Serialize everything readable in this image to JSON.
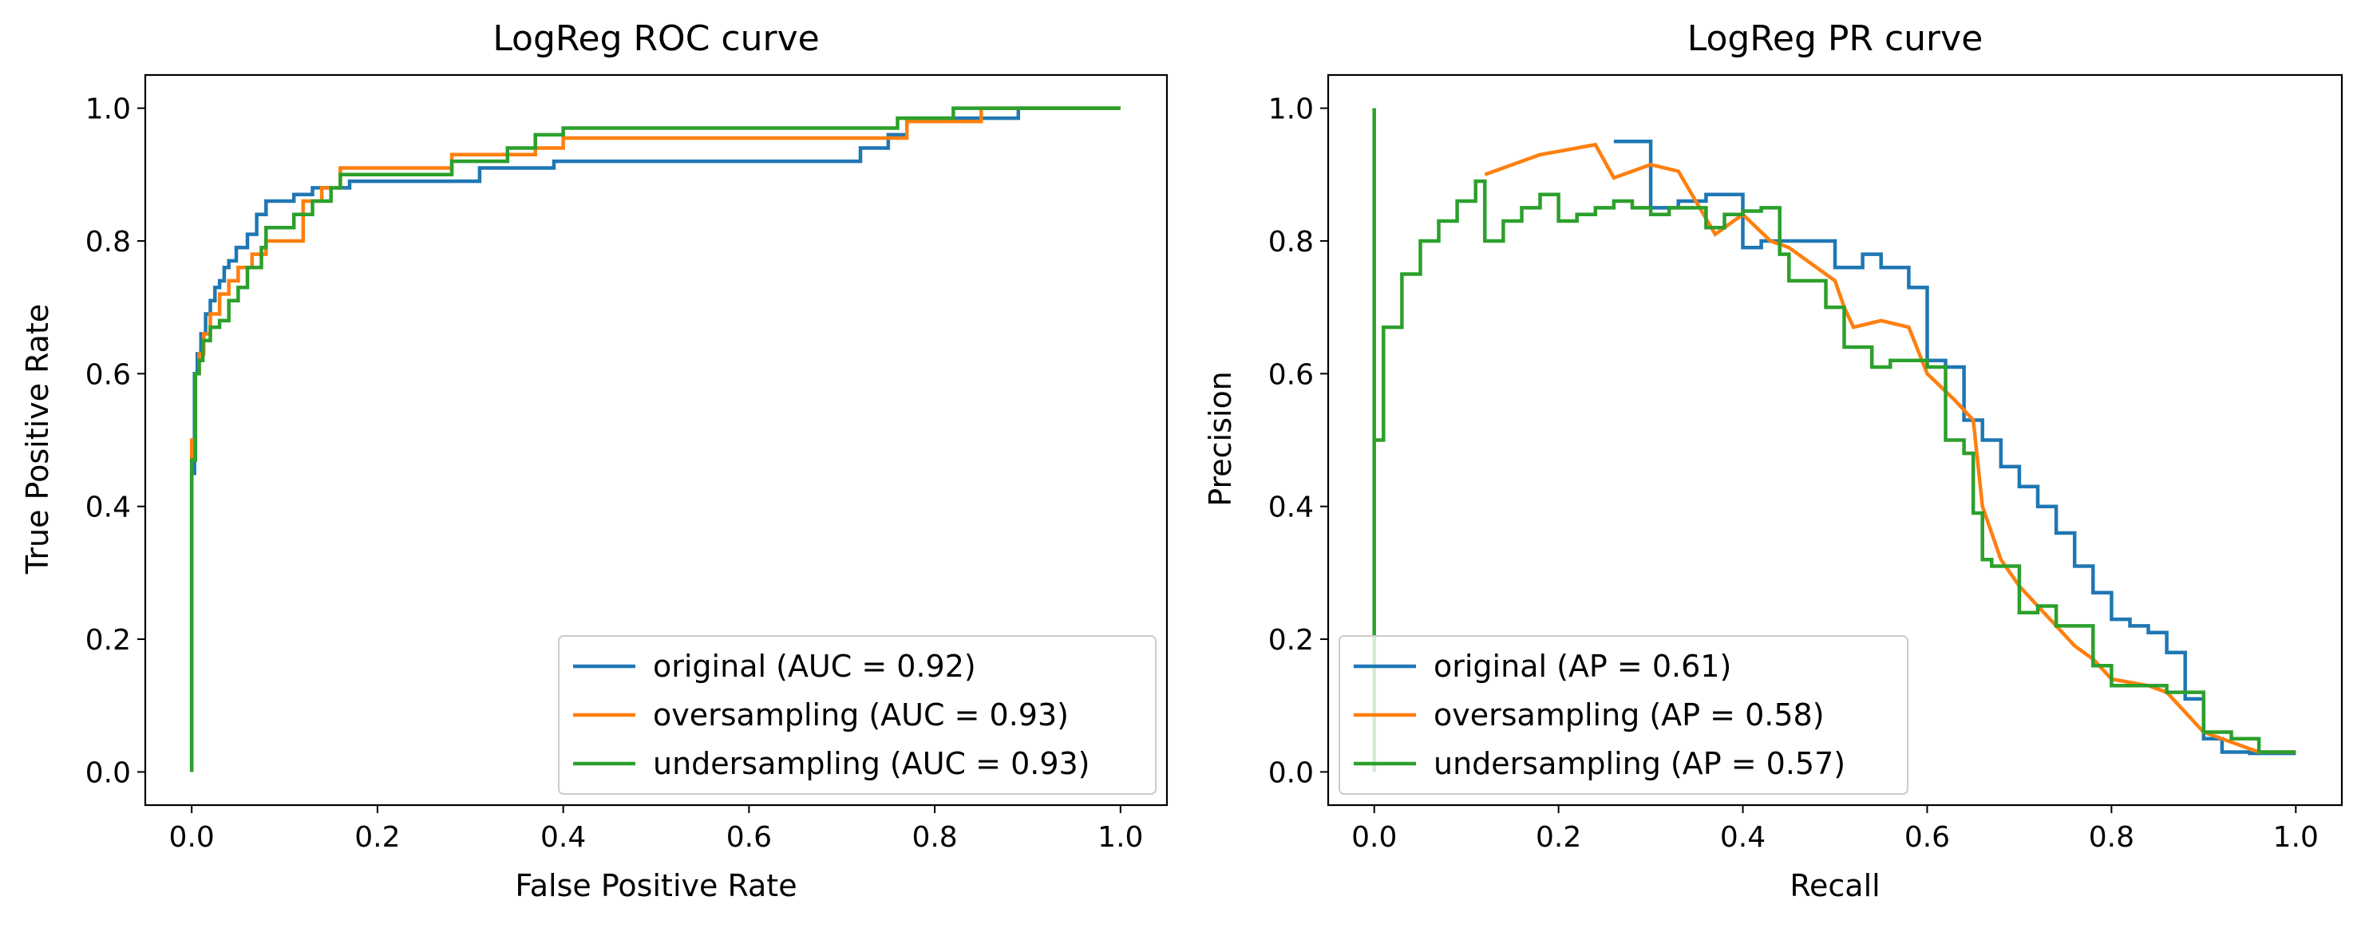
{
  "chart_data": [
    {
      "type": "line",
      "title": "LogReg ROC curve",
      "xlabel": "False Positive Rate",
      "ylabel": "True Positive Rate",
      "xlim": [
        -0.05,
        1.05
      ],
      "ylim": [
        -0.05,
        1.05
      ],
      "xticks": [
        "0.0",
        "0.2",
        "0.4",
        "0.6",
        "0.8",
        "1.0"
      ],
      "yticks": [
        "0.0",
        "0.2",
        "0.4",
        "0.6",
        "0.8",
        "1.0"
      ],
      "legend_position": "lower-right",
      "series": [
        {
          "name": "original (AUC = 0.92)",
          "color": "#1f77b4",
          "x": [
            0.0,
            0.0,
            0.003,
            0.003,
            0.006,
            0.006,
            0.01,
            0.01,
            0.015,
            0.015,
            0.02,
            0.02,
            0.025,
            0.025,
            0.03,
            0.03,
            0.035,
            0.035,
            0.04,
            0.04,
            0.048,
            0.048,
            0.06,
            0.06,
            0.07,
            0.07,
            0.08,
            0.08,
            0.11,
            0.11,
            0.13,
            0.13,
            0.17,
            0.17,
            0.31,
            0.31,
            0.39,
            0.39,
            0.72,
            0.72,
            0.75,
            0.75,
            0.77,
            0.77,
            0.89,
            0.89,
            1.0
          ],
          "y": [
            0.0,
            0.45,
            0.45,
            0.6,
            0.6,
            0.63,
            0.63,
            0.66,
            0.66,
            0.69,
            0.69,
            0.71,
            0.71,
            0.73,
            0.73,
            0.74,
            0.74,
            0.76,
            0.76,
            0.77,
            0.77,
            0.79,
            0.79,
            0.81,
            0.81,
            0.84,
            0.84,
            0.86,
            0.86,
            0.87,
            0.87,
            0.88,
            0.88,
            0.89,
            0.89,
            0.91,
            0.91,
            0.92,
            0.92,
            0.94,
            0.94,
            0.96,
            0.96,
            0.985,
            0.985,
            1.0,
            1.0
          ]
        },
        {
          "name": "oversampling (AUC = 0.93)",
          "color": "#ff7f0e",
          "x": [
            0.0,
            0.0,
            0.004,
            0.004,
            0.008,
            0.008,
            0.013,
            0.013,
            0.02,
            0.02,
            0.03,
            0.03,
            0.04,
            0.04,
            0.05,
            0.05,
            0.065,
            0.065,
            0.08,
            0.08,
            0.12,
            0.12,
            0.14,
            0.14,
            0.16,
            0.16,
            0.28,
            0.28,
            0.37,
            0.37,
            0.4,
            0.4,
            0.77,
            0.77,
            0.85,
            0.85,
            1.0
          ],
          "y": [
            0.0,
            0.5,
            0.5,
            0.6,
            0.6,
            0.63,
            0.63,
            0.66,
            0.66,
            0.69,
            0.69,
            0.72,
            0.72,
            0.74,
            0.74,
            0.76,
            0.76,
            0.78,
            0.78,
            0.8,
            0.8,
            0.86,
            0.86,
            0.88,
            0.88,
            0.91,
            0.91,
            0.93,
            0.93,
            0.94,
            0.94,
            0.955,
            0.955,
            0.98,
            0.98,
            1.0,
            1.0
          ]
        },
        {
          "name": "undersampling (AUC = 0.93)",
          "color": "#2ca02c",
          "x": [
            0.0,
            0.0,
            0.004,
            0.004,
            0.008,
            0.008,
            0.012,
            0.012,
            0.02,
            0.02,
            0.03,
            0.03,
            0.04,
            0.04,
            0.05,
            0.05,
            0.06,
            0.06,
            0.075,
            0.075,
            0.08,
            0.08,
            0.11,
            0.11,
            0.13,
            0.13,
            0.15,
            0.15,
            0.16,
            0.16,
            0.28,
            0.28,
            0.34,
            0.34,
            0.37,
            0.37,
            0.4,
            0.4,
            0.76,
            0.76,
            0.82,
            0.82,
            1.0
          ],
          "y": [
            0.0,
            0.47,
            0.47,
            0.6,
            0.6,
            0.62,
            0.62,
            0.65,
            0.65,
            0.67,
            0.67,
            0.68,
            0.68,
            0.71,
            0.71,
            0.73,
            0.73,
            0.76,
            0.76,
            0.79,
            0.79,
            0.82,
            0.82,
            0.84,
            0.84,
            0.86,
            0.86,
            0.88,
            0.88,
            0.9,
            0.9,
            0.92,
            0.92,
            0.94,
            0.94,
            0.96,
            0.96,
            0.97,
            0.97,
            0.985,
            0.985,
            1.0,
            1.0
          ]
        }
      ]
    },
    {
      "type": "line",
      "title": "LogReg PR curve",
      "xlabel": "Recall",
      "ylabel": "Precision",
      "xlim": [
        -0.05,
        1.05
      ],
      "ylim": [
        -0.05,
        1.05
      ],
      "xticks": [
        "0.0",
        "0.2",
        "0.4",
        "0.6",
        "0.8",
        "1.0"
      ],
      "yticks": [
        "0.0",
        "0.2",
        "0.4",
        "0.6",
        "0.8",
        "1.0"
      ],
      "legend_position": "lower-left",
      "series": [
        {
          "name": "original (AP = 0.61)",
          "color": "#1f77b4",
          "x": [
            0.26,
            0.26,
            0.3,
            0.3,
            0.33,
            0.33,
            0.36,
            0.36,
            0.4,
            0.4,
            0.42,
            0.42,
            0.45,
            0.45,
            0.5,
            0.5,
            0.53,
            0.53,
            0.55,
            0.55,
            0.58,
            0.58,
            0.6,
            0.6,
            0.62,
            0.62,
            0.64,
            0.64,
            0.66,
            0.66,
            0.68,
            0.68,
            0.7,
            0.7,
            0.72,
            0.72,
            0.74,
            0.74,
            0.76,
            0.76,
            0.78,
            0.78,
            0.8,
            0.8,
            0.82,
            0.82,
            0.84,
            0.84,
            0.86,
            0.86,
            0.88,
            0.88,
            0.9,
            0.9,
            0.92,
            0.92,
            0.95,
            0.95,
            1.0
          ],
          "y": [
            0.95,
            0.95,
            0.95,
            0.85,
            0.85,
            0.86,
            0.86,
            0.87,
            0.87,
            0.79,
            0.79,
            0.8,
            0.8,
            0.8,
            0.8,
            0.76,
            0.76,
            0.78,
            0.78,
            0.76,
            0.76,
            0.73,
            0.73,
            0.62,
            0.62,
            0.61,
            0.61,
            0.53,
            0.53,
            0.5,
            0.5,
            0.46,
            0.46,
            0.43,
            0.43,
            0.4,
            0.4,
            0.36,
            0.36,
            0.31,
            0.31,
            0.27,
            0.27,
            0.23,
            0.23,
            0.22,
            0.22,
            0.21,
            0.21,
            0.18,
            0.18,
            0.11,
            0.11,
            0.05,
            0.05,
            0.03,
            0.03,
            0.028,
            0.028
          ]
        },
        {
          "name": "oversampling (AP = 0.58)",
          "color": "#ff7f0e",
          "x": [
            0.12,
            0.12,
            0.14,
            0.14,
            0.16,
            0.16,
            0.18,
            0.18,
            0.2,
            0.2,
            0.22,
            0.22,
            0.24,
            0.24,
            0.26,
            0.26,
            0.3,
            0.3,
            0.33,
            0.33,
            0.37,
            0.37,
            0.4,
            0.4,
            0.43,
            0.43,
            0.45,
            0.45,
            0.5,
            0.5,
            0.51,
            0.51,
            0.52,
            0.52,
            0.55,
            0.55,
            0.58,
            0.58,
            0.6,
            0.6,
            0.63,
            0.63,
            0.65,
            0.65,
            0.66,
            0.66,
            0.68,
            0.68,
            0.7,
            0.7,
            0.72,
            0.72,
            0.74,
            0.74,
            0.76,
            0.76,
            0.78,
            0.78,
            0.8,
            0.8,
            0.84,
            0.84,
            0.86,
            0.86,
            0.9,
            0.9,
            0.96,
            0.96,
            1.0
          ],
          "y": [
            0.9,
            0.9,
            0.91,
            0.91,
            0.92,
            0.92,
            0.93,
            0.93,
            0.935,
            0.935,
            0.94,
            0.94,
            0.945,
            0.945,
            0.895,
            0.895,
            0.915,
            0.915,
            0.905,
            0.905,
            0.81,
            0.81,
            0.84,
            0.84,
            0.8,
            0.8,
            0.79,
            0.79,
            0.74,
            0.74,
            0.7,
            0.7,
            0.67,
            0.67,
            0.68,
            0.68,
            0.67,
            0.67,
            0.6,
            0.6,
            0.56,
            0.56,
            0.53,
            0.53,
            0.4,
            0.4,
            0.32,
            0.32,
            0.28,
            0.28,
            0.25,
            0.25,
            0.22,
            0.22,
            0.19,
            0.19,
            0.17,
            0.17,
            0.14,
            0.14,
            0.13,
            0.13,
            0.12,
            0.12,
            0.06,
            0.06,
            0.03,
            0.03,
            0.03
          ]
        },
        {
          "name": "undersampling (AP = 0.57)",
          "color": "#2ca02c",
          "x": [
            0.0,
            0.0,
            0.0,
            0.0,
            0.01,
            0.01,
            0.03,
            0.03,
            0.05,
            0.05,
            0.07,
            0.07,
            0.09,
            0.09,
            0.11,
            0.11,
            0.12,
            0.12,
            0.14,
            0.14,
            0.16,
            0.16,
            0.18,
            0.18,
            0.2,
            0.2,
            0.22,
            0.22,
            0.24,
            0.24,
            0.26,
            0.26,
            0.28,
            0.28,
            0.3,
            0.3,
            0.32,
            0.32,
            0.36,
            0.36,
            0.38,
            0.38,
            0.4,
            0.4,
            0.42,
            0.42,
            0.44,
            0.44,
            0.45,
            0.45,
            0.49,
            0.49,
            0.51,
            0.51,
            0.54,
            0.54,
            0.56,
            0.56,
            0.6,
            0.6,
            0.62,
            0.62,
            0.64,
            0.64,
            0.65,
            0.65,
            0.66,
            0.66,
            0.67,
            0.67,
            0.7,
            0.7,
            0.72,
            0.72,
            0.74,
            0.74,
            0.78,
            0.78,
            0.8,
            0.8,
            0.86,
            0.86,
            0.9,
            0.9,
            0.93,
            0.93,
            0.96,
            0.96,
            1.0
          ],
          "y": [
            0.0,
            1.0,
            1.0,
            0.5,
            0.5,
            0.67,
            0.67,
            0.75,
            0.75,
            0.8,
            0.8,
            0.83,
            0.83,
            0.86,
            0.86,
            0.89,
            0.89,
            0.8,
            0.8,
            0.83,
            0.83,
            0.85,
            0.85,
            0.87,
            0.87,
            0.83,
            0.83,
            0.84,
            0.84,
            0.85,
            0.85,
            0.86,
            0.86,
            0.85,
            0.85,
            0.84,
            0.84,
            0.85,
            0.85,
            0.82,
            0.82,
            0.84,
            0.84,
            0.845,
            0.845,
            0.85,
            0.85,
            0.78,
            0.78,
            0.74,
            0.74,
            0.7,
            0.7,
            0.64,
            0.64,
            0.61,
            0.61,
            0.62,
            0.62,
            0.61,
            0.61,
            0.5,
            0.5,
            0.48,
            0.48,
            0.39,
            0.39,
            0.32,
            0.32,
            0.31,
            0.31,
            0.24,
            0.24,
            0.25,
            0.25,
            0.22,
            0.22,
            0.16,
            0.16,
            0.13,
            0.13,
            0.12,
            0.12,
            0.06,
            0.06,
            0.05,
            0.05,
            0.03,
            0.03
          ]
        }
      ]
    }
  ]
}
